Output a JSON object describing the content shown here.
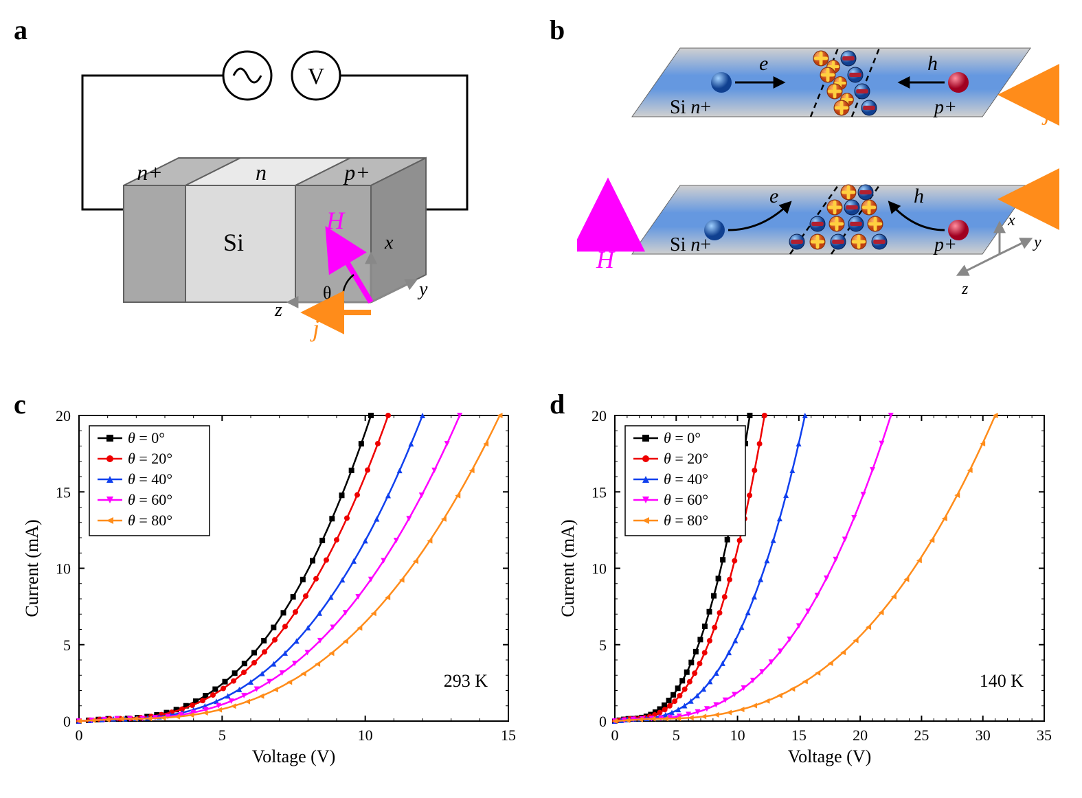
{
  "panels": {
    "a": {
      "label": "a"
    },
    "b": {
      "label": "b"
    },
    "c": {
      "label": "c"
    },
    "d": {
      "label": "d"
    }
  },
  "panel_a": {
    "labels": {
      "n_plus": "n+",
      "n": "n",
      "p_plus": "p+",
      "Si": "Si",
      "H": "H",
      "j": "j",
      "theta": "θ",
      "x": "x",
      "y": "y",
      "z": "z",
      "V": "V"
    },
    "colors": {
      "block_dark": "#a8a8a8",
      "block_light": "#dcdcdc",
      "block_top_dark": "#bababa",
      "block_top_light": "#eaeaea",
      "stroke": "#606060",
      "H_arrow": "#ff00ff",
      "j_arrow": "#ff8c1a",
      "wire": "#000000",
      "axis": "#888888"
    }
  },
  "panel_b": {
    "labels": {
      "e": "e",
      "h": "h",
      "j": "j",
      "H": "H",
      "Si_nplus": "Si n+",
      "pplus": "p+",
      "x": "x",
      "y": "y",
      "z": "z"
    },
    "colors": {
      "plane_grad_start": "#c8c8c8",
      "plane_grad_mid": "#5a8cd8",
      "electron": "#2060c0",
      "electron_highlight": "#80b0ff",
      "hole": "#d01030",
      "hole_highlight": "#ff8090",
      "plus_charge_fill": "#e05020",
      "plus_charge_cross": "#ffd040",
      "minus_charge_fill": "#b02030",
      "minus_charge_band": "#3060c0",
      "H_arrow": "#ff00ff",
      "j_arrow": "#ff8c1a"
    }
  },
  "chart_common": {
    "xlabel": "Voltage (V)",
    "ylabel": "Current  (mA)",
    "ylim": [
      0,
      20
    ],
    "ytick_step": 5,
    "label_fontsize": 26,
    "tick_fontsize": 22,
    "legend_fontsize": 22,
    "axis_color": "#000000",
    "background_color": "#ffffff",
    "series_meta": [
      {
        "label": "θ = 0°",
        "color": "#000000",
        "marker": "square"
      },
      {
        "label": "θ = 20°",
        "color": "#ee0000",
        "marker": "circle"
      },
      {
        "label": "θ = 40°",
        "color": "#1040ee",
        "marker": "tri-up"
      },
      {
        "label": "θ = 60°",
        "color": "#ff00ff",
        "marker": "tri-down"
      },
      {
        "label": "θ = 80°",
        "color": "#ff8c1a",
        "marker": "tri-left"
      }
    ]
  },
  "panel_c": {
    "annotation": "293 K",
    "xlim": [
      0,
      15
    ],
    "xtick_step": 5,
    "V_at_20mA": [
      10.2,
      10.8,
      12.0,
      13.3,
      14.7
    ],
    "V_threshold": [
      1.0,
      1.0,
      1.2,
      1.3,
      1.5
    ]
  },
  "panel_d": {
    "annotation": "140 K",
    "xlim": [
      0,
      35
    ],
    "xtick_step": 5,
    "V_at_20mA": [
      11.0,
      12.2,
      15.5,
      22.5,
      31.0
    ],
    "V_threshold": [
      1.0,
      1.2,
      1.5,
      2.0,
      3.0
    ]
  }
}
